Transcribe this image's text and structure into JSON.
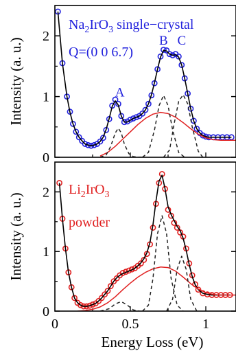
{
  "chart_data": [
    {
      "type": "line",
      "panel": "top",
      "annotation": {
        "line1_parts": [
          "Na",
          "2",
          "IrO",
          "3",
          " single−crystal"
        ],
        "line2": "Q=(0 0 6.7)",
        "color": "#2222dd"
      },
      "peak_labels": [
        "A",
        "B",
        "C"
      ],
      "ylabel": "Intensity (a. u.)",
      "ylim": [
        0,
        2.5
      ],
      "xlim": [
        0,
        1.2
      ],
      "y_ticks": [
        "0",
        "1",
        "2"
      ],
      "y_tick_values": [
        0,
        1,
        2
      ],
      "data_color": "#2222dd",
      "series": [
        {
          "name": "data",
          "style": "markers",
          "x": [
            0.02,
            0.05,
            0.08,
            0.1,
            0.12,
            0.14,
            0.16,
            0.18,
            0.2,
            0.22,
            0.24,
            0.26,
            0.28,
            0.3,
            0.32,
            0.34,
            0.36,
            0.38,
            0.4,
            0.42,
            0.44,
            0.46,
            0.48,
            0.5,
            0.52,
            0.54,
            0.56,
            0.58,
            0.6,
            0.62,
            0.64,
            0.66,
            0.68,
            0.7,
            0.72,
            0.74,
            0.76,
            0.78,
            0.8,
            0.82,
            0.84,
            0.86,
            0.88,
            0.9,
            0.92,
            0.94,
            0.96,
            0.98,
            1.0,
            1.02,
            1.05,
            1.08,
            1.11,
            1.14,
            1.17
          ],
          "y": [
            2.4,
            1.55,
            1.0,
            0.75,
            0.55,
            0.42,
            0.33,
            0.27,
            0.22,
            0.2,
            0.19,
            0.2,
            0.22,
            0.26,
            0.32,
            0.45,
            0.63,
            0.85,
            0.95,
            0.88,
            0.68,
            0.58,
            0.59,
            0.62,
            0.64,
            0.66,
            0.68,
            0.72,
            0.78,
            0.88,
            1.02,
            1.22,
            1.45,
            1.66,
            1.77,
            1.76,
            1.7,
            1.68,
            1.7,
            1.66,
            1.52,
            1.3,
            1.05,
            0.8,
            0.6,
            0.47,
            0.4,
            0.36,
            0.34,
            0.33,
            0.33,
            0.33,
            0.33,
            0.33,
            0.33
          ]
        },
        {
          "name": "fit",
          "style": "solid",
          "color": "#000000",
          "x": [
            0.02,
            0.05,
            0.08,
            0.1,
            0.12,
            0.14,
            0.16,
            0.18,
            0.2,
            0.22,
            0.24,
            0.26,
            0.28,
            0.3,
            0.32,
            0.34,
            0.36,
            0.38,
            0.4,
            0.42,
            0.44,
            0.46,
            0.48,
            0.5,
            0.52,
            0.54,
            0.56,
            0.58,
            0.6,
            0.62,
            0.64,
            0.66,
            0.68,
            0.7,
            0.72,
            0.74,
            0.76,
            0.78,
            0.8,
            0.82,
            0.84,
            0.86,
            0.88,
            0.9,
            0.92,
            0.94,
            0.96,
            0.98,
            1.0,
            1.02,
            1.05,
            1.08,
            1.11,
            1.14,
            1.17
          ],
          "y": [
            2.4,
            1.55,
            1.0,
            0.74,
            0.55,
            0.42,
            0.33,
            0.27,
            0.22,
            0.2,
            0.19,
            0.2,
            0.22,
            0.26,
            0.33,
            0.46,
            0.64,
            0.84,
            0.93,
            0.86,
            0.68,
            0.58,
            0.58,
            0.61,
            0.64,
            0.66,
            0.68,
            0.72,
            0.78,
            0.88,
            1.03,
            1.23,
            1.45,
            1.65,
            1.76,
            1.75,
            1.7,
            1.68,
            1.69,
            1.65,
            1.52,
            1.3,
            1.05,
            0.8,
            0.6,
            0.47,
            0.4,
            0.36,
            0.34,
            0.33,
            0.33,
            0.33,
            0.33,
            0.33,
            0.33
          ]
        },
        {
          "name": "background",
          "style": "solid",
          "color": "#e02020",
          "x": [
            0.3,
            0.35,
            0.4,
            0.45,
            0.5,
            0.55,
            0.6,
            0.65,
            0.7,
            0.75,
            0.8,
            0.85,
            0.9,
            0.95,
            1.0,
            1.05,
            1.1,
            1.15,
            1.2
          ],
          "y": [
            0.02,
            0.08,
            0.18,
            0.3,
            0.42,
            0.54,
            0.64,
            0.71,
            0.74,
            0.72,
            0.66,
            0.57,
            0.47,
            0.38,
            0.32,
            0.29,
            0.28,
            0.28,
            0.28
          ]
        },
        {
          "name": "peak A",
          "style": "dashed",
          "color": "#222222",
          "x": [
            0.3,
            0.34,
            0.37,
            0.4,
            0.42,
            0.44,
            0.46,
            0.49,
            0.52,
            0.56,
            0.6
          ],
          "y": [
            0.0,
            0.04,
            0.18,
            0.4,
            0.48,
            0.4,
            0.22,
            0.06,
            0.01,
            0.0,
            0.0
          ]
        },
        {
          "name": "peak B",
          "style": "dashed",
          "color": "#222222",
          "x": [
            0.58,
            0.62,
            0.66,
            0.69,
            0.72,
            0.75,
            0.78,
            0.82,
            0.86
          ],
          "y": [
            0.0,
            0.08,
            0.45,
            0.85,
            1.02,
            0.85,
            0.45,
            0.08,
            0.0
          ]
        },
        {
          "name": "peak C",
          "style": "dashed",
          "color": "#222222",
          "x": [
            0.72,
            0.76,
            0.79,
            0.82,
            0.85,
            0.88,
            0.91,
            0.95,
            0.98
          ],
          "y": [
            0.0,
            0.12,
            0.55,
            0.92,
            1.03,
            0.88,
            0.5,
            0.1,
            0.0
          ]
        }
      ]
    },
    {
      "type": "line",
      "panel": "bottom",
      "annotation": {
        "line1_parts": [
          "Li",
          "2",
          "IrO",
          "3"
        ],
        "line2": "powder",
        "color": "#e02020"
      },
      "ylabel": "Intensity (a. u.)",
      "xlabel": "Energy Loss (eV)",
      "ylim": [
        0,
        2.5
      ],
      "xlim": [
        0,
        1.2
      ],
      "x_ticks": [
        "0",
        "0.5",
        "1"
      ],
      "x_tick_values": [
        0,
        0.5,
        1.0
      ],
      "y_ticks": [
        "0",
        "1",
        "2"
      ],
      "y_tick_values": [
        0,
        1,
        2
      ],
      "data_color": "#e02020",
      "series": [
        {
          "name": "data",
          "style": "markers",
          "x": [
            0.03,
            0.05,
            0.07,
            0.09,
            0.11,
            0.13,
            0.15,
            0.17,
            0.19,
            0.21,
            0.23,
            0.25,
            0.27,
            0.29,
            0.31,
            0.33,
            0.35,
            0.37,
            0.39,
            0.41,
            0.43,
            0.45,
            0.47,
            0.49,
            0.51,
            0.53,
            0.55,
            0.57,
            0.59,
            0.61,
            0.63,
            0.65,
            0.67,
            0.69,
            0.71,
            0.73,
            0.75,
            0.77,
            0.79,
            0.81,
            0.83,
            0.85,
            0.87,
            0.89,
            0.91,
            0.93,
            0.95,
            0.98,
            1.01,
            1.04,
            1.07,
            1.1,
            1.13,
            1.16
          ],
          "y": [
            2.15,
            1.55,
            1.05,
            0.65,
            0.4,
            0.22,
            0.14,
            0.1,
            0.08,
            0.08,
            0.09,
            0.11,
            0.13,
            0.17,
            0.22,
            0.28,
            0.34,
            0.42,
            0.5,
            0.55,
            0.6,
            0.64,
            0.66,
            0.68,
            0.7,
            0.72,
            0.76,
            0.8,
            0.86,
            0.96,
            1.12,
            1.4,
            1.8,
            2.15,
            2.3,
            2.05,
            1.7,
            1.6,
            1.48,
            1.4,
            1.32,
            1.25,
            1.05,
            0.8,
            0.6,
            0.45,
            0.36,
            0.3,
            0.28,
            0.27,
            0.27,
            0.27,
            0.27,
            0.27
          ]
        },
        {
          "name": "fit",
          "style": "solid",
          "color": "#000000",
          "x": [
            0.03,
            0.05,
            0.07,
            0.09,
            0.11,
            0.13,
            0.15,
            0.17,
            0.19,
            0.21,
            0.23,
            0.25,
            0.27,
            0.29,
            0.31,
            0.33,
            0.35,
            0.37,
            0.39,
            0.41,
            0.43,
            0.45,
            0.47,
            0.49,
            0.51,
            0.53,
            0.55,
            0.57,
            0.59,
            0.61,
            0.63,
            0.65,
            0.67,
            0.69,
            0.71,
            0.73,
            0.75,
            0.77,
            0.79,
            0.81,
            0.83,
            0.85,
            0.87,
            0.89,
            0.91,
            0.93,
            0.95,
            0.98,
            1.01,
            1.04,
            1.07,
            1.1,
            1.13,
            1.16
          ],
          "y": [
            2.15,
            1.55,
            1.05,
            0.65,
            0.4,
            0.22,
            0.14,
            0.1,
            0.08,
            0.08,
            0.09,
            0.11,
            0.13,
            0.17,
            0.22,
            0.28,
            0.34,
            0.42,
            0.5,
            0.56,
            0.6,
            0.63,
            0.65,
            0.67,
            0.69,
            0.72,
            0.76,
            0.81,
            0.88,
            0.98,
            1.15,
            1.45,
            1.85,
            2.18,
            2.28,
            2.05,
            1.75,
            1.62,
            1.52,
            1.42,
            1.35,
            1.22,
            1.02,
            0.78,
            0.58,
            0.44,
            0.36,
            0.3,
            0.28,
            0.27,
            0.27,
            0.27,
            0.27,
            0.27
          ]
        },
        {
          "name": "background",
          "style": "solid",
          "color": "#e02020",
          "x": [
            0.15,
            0.2,
            0.25,
            0.3,
            0.35,
            0.4,
            0.45,
            0.5,
            0.55,
            0.6,
            0.65,
            0.7,
            0.75,
            0.8,
            0.85,
            0.9,
            0.95,
            1.0,
            1.05,
            1.1,
            1.15,
            1.2
          ],
          "y": [
            0.0,
            0.01,
            0.03,
            0.07,
            0.14,
            0.24,
            0.36,
            0.47,
            0.57,
            0.65,
            0.71,
            0.74,
            0.73,
            0.67,
            0.57,
            0.46,
            0.37,
            0.31,
            0.28,
            0.27,
            0.27,
            0.27
          ]
        },
        {
          "name": "peak A",
          "style": "dashed",
          "color": "#222222",
          "x": [
            0.3,
            0.36,
            0.4,
            0.44,
            0.48,
            0.52,
            0.56
          ],
          "y": [
            0.0,
            0.04,
            0.12,
            0.16,
            0.1,
            0.02,
            0.0
          ]
        },
        {
          "name": "peak B",
          "style": "dashed",
          "color": "#222222",
          "x": [
            0.58,
            0.62,
            0.65,
            0.68,
            0.71,
            0.74,
            0.77,
            0.81,
            0.85
          ],
          "y": [
            0.0,
            0.1,
            0.55,
            1.3,
            1.6,
            1.3,
            0.55,
            0.1,
            0.0
          ]
        },
        {
          "name": "peak C",
          "style": "dashed",
          "color": "#222222",
          "x": [
            0.74,
            0.78,
            0.81,
            0.84,
            0.87,
            0.9,
            0.94
          ],
          "y": [
            0.0,
            0.2,
            0.7,
            0.92,
            0.7,
            0.2,
            0.0
          ]
        }
      ]
    }
  ]
}
